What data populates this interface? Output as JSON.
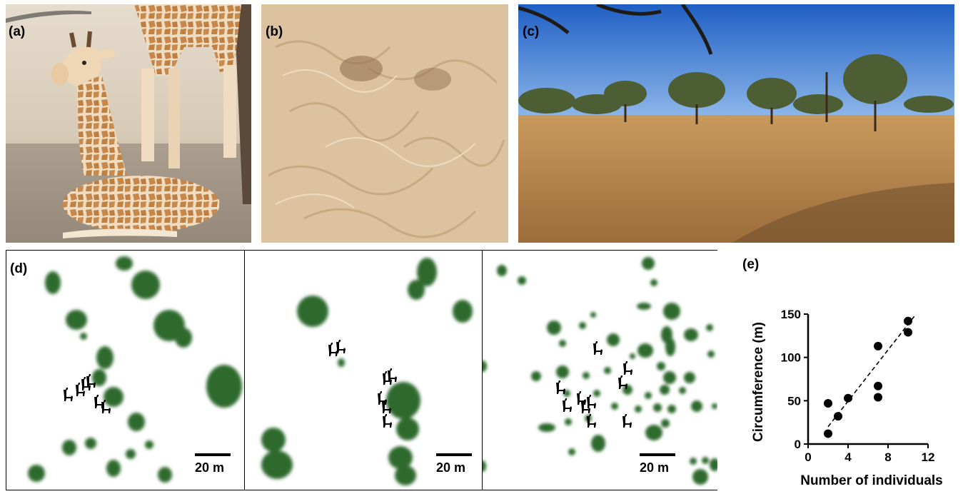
{
  "panels": {
    "a": {
      "label": "(a)"
    },
    "b": {
      "label": "(b)"
    },
    "c": {
      "label": "(c)"
    },
    "d": {
      "label": "(d)"
    },
    "e": {
      "label": "(e)"
    }
  },
  "maps": [
    {
      "scale_label": "20 m"
    },
    {
      "scale_label": "20 m"
    },
    {
      "scale_label": "20 m"
    }
  ],
  "colors": {
    "vegetation": "#2d6a2d",
    "silhouette": "#000000",
    "sky": "#2f73d1",
    "sand": "#d9bf9a",
    "ground": "#b8864b"
  },
  "chart_data": {
    "type": "scatter",
    "xlabel": "Number of individuals",
    "ylabel": "Circumference (m)",
    "xlim": [
      0,
      12
    ],
    "ylim": [
      0,
      150
    ],
    "xticks": [
      0,
      4,
      8,
      12
    ],
    "yticks": [
      0,
      50,
      100,
      150
    ],
    "points": [
      {
        "x": 2,
        "y": 12
      },
      {
        "x": 2,
        "y": 47
      },
      {
        "x": 3,
        "y": 32
      },
      {
        "x": 4,
        "y": 53
      },
      {
        "x": 7,
        "y": 54
      },
      {
        "x": 7,
        "y": 67
      },
      {
        "x": 7,
        "y": 113
      },
      {
        "x": 10,
        "y": 129
      },
      {
        "x": 10,
        "y": 142
      }
    ],
    "trend_line": {
      "x": [
        2,
        10.8
      ],
      "y": [
        20,
        150
      ],
      "style": "dashed"
    }
  }
}
